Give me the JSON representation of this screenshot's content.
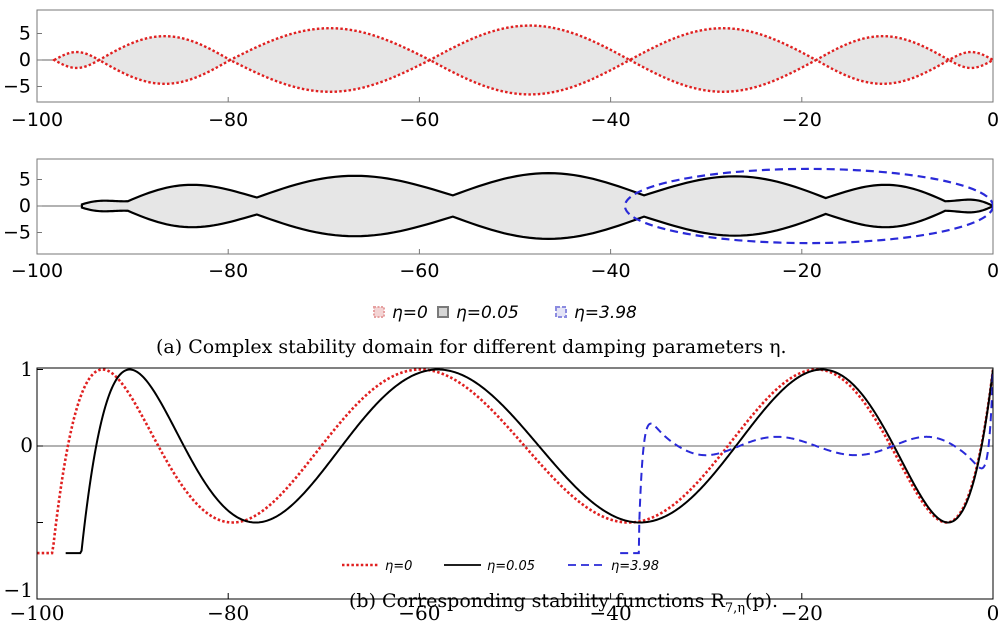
{
  "chart_data": [
    {
      "panel": "a-top",
      "type": "area",
      "xlim": [
        -100,
        0
      ],
      "ylim": [
        -8,
        8
      ],
      "x_ticks": [
        "−100",
        "−80",
        "−60",
        "−40",
        "−20",
        "0"
      ],
      "y_ticks": [
        "5",
        "0",
        "−5"
      ],
      "series": [
        {
          "name": "η=0",
          "color": "#e02020",
          "style": "dotted",
          "nodes": [
            -98.2,
            -93.5,
            -79.8,
            -58.9,
            -38.0,
            -18.5,
            -4.6,
            0
          ],
          "lobe_heights": [
            1.5,
            4.5,
            6.0,
            6.5,
            6.0,
            4.5,
            1.5
          ]
        }
      ]
    },
    {
      "panel": "a-bottom",
      "type": "area",
      "xlim": [
        -100,
        0
      ],
      "ylim": [
        -8,
        8
      ],
      "x_ticks": [
        "−100",
        "−80",
        "−60",
        "−40",
        "−20",
        "0"
      ],
      "y_ticks": [
        "5",
        "0",
        "−5"
      ],
      "series": [
        {
          "name": "η=0.05",
          "color": "#000000",
          "style": "solid",
          "nodes": [
            -95.3,
            -90.5,
            -77.0,
            -56.5,
            -36.5,
            -17.5,
            -5.0,
            0
          ],
          "lobe_heights": [
            1.0,
            4.0,
            5.7,
            6.2,
            5.6,
            4.0,
            1.2
          ],
          "node_heights": [
            0.3,
            0.9,
            1.6,
            2.0,
            2.0,
            1.5,
            0.9,
            0
          ]
        },
        {
          "name": "η=3.98",
          "color": "#2a2ad8",
          "style": "dashed",
          "ellipse_x": [
            -38.5,
            0
          ],
          "ellipse_halfheight": 7.0
        }
      ],
      "legend": [
        "η=0",
        "η=0.05",
        "η=3.98"
      ]
    },
    {
      "panel": "b",
      "type": "line",
      "xlim": [
        -100,
        0
      ],
      "ylim": [
        -1,
        1
      ],
      "x_ticks": [
        "−100",
        "−80",
        "−60",
        "−40",
        "−20",
        "0"
      ],
      "y_ticks": [
        "1",
        "0",
        "−1"
      ],
      "series": [
        {
          "name": "η=0",
          "color": "#e02020",
          "style": "dotted",
          "degree": 7,
          "L": 98.0,
          "a": 0.0
        },
        {
          "name": "η=0.05",
          "color": "#000000",
          "style": "solid",
          "degree": 7,
          "L": 95.0,
          "a": 0.0
        },
        {
          "name": "η=3.98",
          "color": "#2a2ad8",
          "style": "dashed",
          "degree": 7,
          "L": 37.0,
          "a": 0.12
        }
      ],
      "legend": [
        "η=0",
        "η=0.05",
        "η=3.98"
      ]
    }
  ],
  "captions": {
    "a": "(a) Complex stability domain for different damping parameters η.",
    "b": "(b) Corresponding stability functions R"
  },
  "caption_b_sub": "7,η",
  "caption_b_arg": "(p)."
}
